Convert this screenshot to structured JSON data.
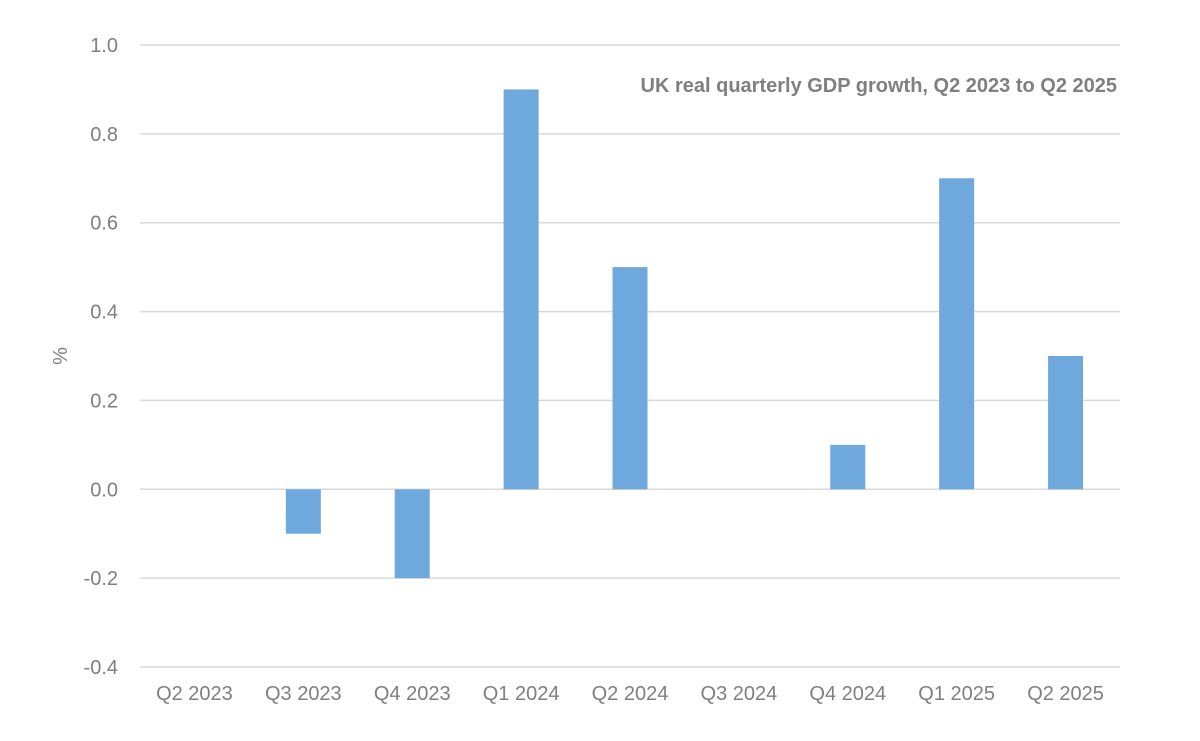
{
  "chart_data": {
    "type": "bar",
    "title": "UK real quarterly GDP growth, Q2 2023 to Q2 2025",
    "xlabel": "",
    "ylabel": "%",
    "categories": [
      "Q2 2023",
      "Q3 2023",
      "Q4 2023",
      "Q1 2024",
      "Q2 2024",
      "Q3 2024",
      "Q4 2024",
      "Q1 2025",
      "Q2 2025"
    ],
    "series": [
      {
        "name": "GDP growth",
        "values": [
          0.0,
          -0.1,
          -0.2,
          0.9,
          0.5,
          0.0,
          0.1,
          0.7,
          0.3
        ]
      }
    ],
    "ylim": [
      -0.4,
      1.0
    ],
    "yticks": [
      "1.0",
      "0.8",
      "0.6",
      "0.4",
      "0.2",
      "0.0",
      "-0.2",
      "-0.4"
    ],
    "ytick_values": [
      1.0,
      0.8,
      0.6,
      0.4,
      0.2,
      0.0,
      -0.2,
      -0.4
    ],
    "grid": true,
    "legend": "none",
    "title_position": "top-right",
    "bar_color": "#6fa8dc"
  }
}
